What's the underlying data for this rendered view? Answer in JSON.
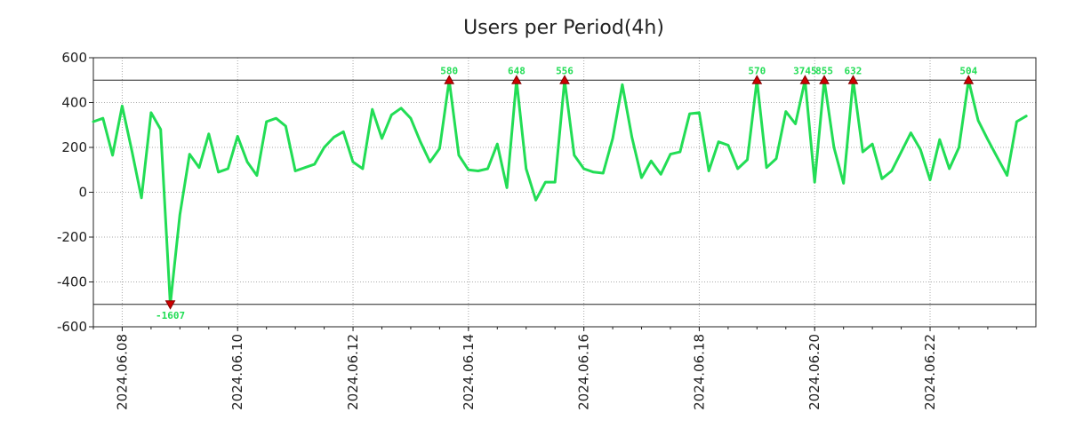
{
  "chart_data": {
    "type": "line",
    "title": "Users per Period(4h)",
    "xlabel": "",
    "ylabel": "",
    "ylim": [
      -600,
      600
    ],
    "clip_limits": [
      -500,
      500
    ],
    "xlim": [
      "2024.06.07 12:00",
      "2024.06.23 20:00"
    ],
    "x_ticks": [
      "2024.06.08",
      "2024.06.10",
      "2024.06.12",
      "2024.06.14",
      "2024.06.16",
      "2024.06.18",
      "2024.06.20",
      "2024.06.22"
    ],
    "y_ticks": [
      600,
      400,
      200,
      0,
      -200,
      -400,
      -600
    ],
    "grid": true,
    "series_color": "#22dd55",
    "clip_marker_color": "#cc0000",
    "series": [
      {
        "name": "Users",
        "period_hours": 4,
        "start": "2024.06.07 12:00",
        "values": [
          315,
          330,
          165,
          385,
          185,
          -25,
          355,
          280,
          -500,
          -100,
          170,
          110,
          260,
          90,
          105,
          250,
          135,
          75,
          315,
          330,
          295,
          95,
          110,
          125,
          200,
          245,
          270,
          135,
          105,
          370,
          240,
          345,
          375,
          330,
          225,
          135,
          195,
          500,
          165,
          100,
          95,
          105,
          215,
          20,
          500,
          105,
          -35,
          45,
          45,
          500,
          165,
          105,
          90,
          85,
          240,
          480,
          245,
          65,
          140,
          80,
          170,
          180,
          350,
          355,
          95,
          225,
          210,
          105,
          145,
          500,
          110,
          150,
          360,
          305,
          500,
          45,
          500,
          200,
          40,
          500,
          180,
          215,
          60,
          95,
          180,
          265,
          190,
          55,
          235,
          105,
          200,
          500,
          320,
          235,
          155,
          75,
          315,
          340
        ]
      }
    ],
    "clipped_points": [
      {
        "index": 8,
        "label": "-1607"
      },
      {
        "index": 37,
        "label": "580"
      },
      {
        "index": 44,
        "label": "648"
      },
      {
        "index": 49,
        "label": "556"
      },
      {
        "index": 69,
        "label": "570"
      },
      {
        "index": 74,
        "label": "3745"
      },
      {
        "index": 76,
        "label": "855"
      },
      {
        "index": 79,
        "label": "632"
      },
      {
        "index": 91,
        "label": "504"
      }
    ]
  }
}
